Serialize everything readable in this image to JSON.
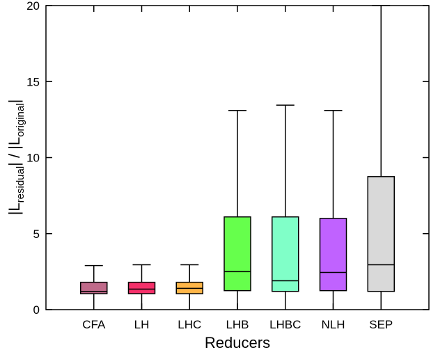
{
  "chart_data": {
    "type": "box",
    "title": "",
    "xlabel": "Reducers",
    "ylabel": {
      "pre": "|L",
      "sub1": "residual",
      "mid": "| / |L",
      "sub2": "original",
      "post": "|"
    },
    "ylim": [
      0,
      20
    ],
    "yticks": [
      0,
      5,
      10,
      15,
      20
    ],
    "grid": false,
    "categories": [
      "CFA",
      "LH",
      "LHC",
      "LHB",
      "LHBC",
      "NLH",
      "SEP"
    ],
    "boxes": [
      {
        "name": "CFA",
        "min": 0,
        "q1": 1.05,
        "median": 1.2,
        "q3": 1.8,
        "max": 2.9,
        "color": "#c06a8a"
      },
      {
        "name": "LH",
        "min": 0,
        "q1": 1.05,
        "median": 1.35,
        "q3": 1.8,
        "max": 2.95,
        "color": "#f5306a"
      },
      {
        "name": "LHC",
        "min": 0,
        "q1": 1.05,
        "median": 1.4,
        "q3": 1.8,
        "max": 2.95,
        "color": "#ffb648"
      },
      {
        "name": "LHB",
        "min": 0,
        "q1": 1.25,
        "median": 2.5,
        "q3": 6.1,
        "max": 13.1,
        "color": "#66ff4c"
      },
      {
        "name": "LHBC",
        "min": 0,
        "q1": 1.2,
        "median": 1.9,
        "q3": 6.1,
        "max": 13.45,
        "color": "#80ffc8"
      },
      {
        "name": "NLH",
        "min": 0,
        "q1": 1.25,
        "median": 2.45,
        "q3": 6.0,
        "max": 13.1,
        "color": "#c062ff"
      },
      {
        "name": "SEP",
        "min": 0,
        "q1": 1.2,
        "median": 2.95,
        "q3": 8.75,
        "max": 20.0,
        "color": "#d9d9d9"
      }
    ]
  }
}
